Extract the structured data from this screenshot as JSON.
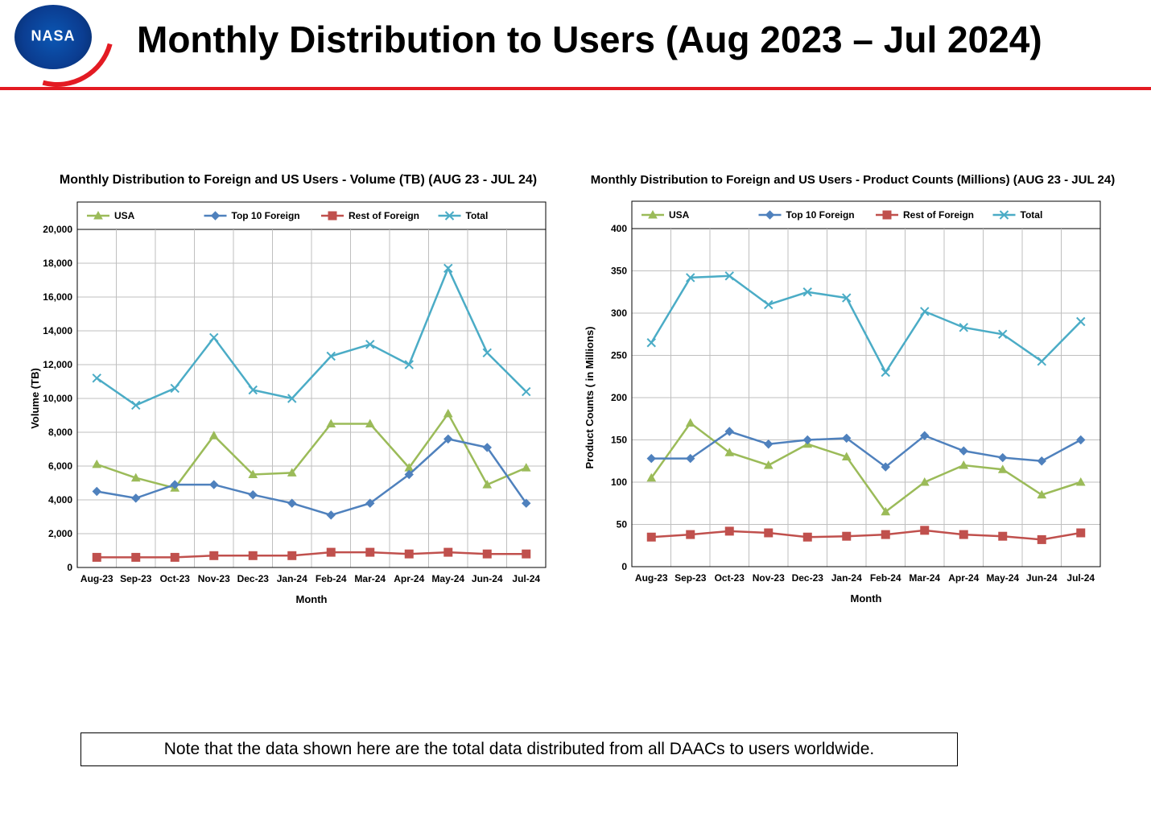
{
  "header": {
    "logo_text": "NASA",
    "title": "Monthly Distribution to Users (Aug 2023 – Jul 2024)"
  },
  "footer_note": "Note that the data shown here are the total data distributed from all DAACs to users worldwide.",
  "charts": {
    "shared": {
      "months": [
        "Aug-23",
        "Sep-23",
        "Oct-23",
        "Nov-23",
        "Dec-23",
        "Jan-24",
        "Feb-24",
        "Mar-24",
        "Apr-24",
        "May-24",
        "Jun-24",
        "Jul-24"
      ],
      "x_axis_label": "Month",
      "series_names": [
        "USA",
        "Top 10 Foreign",
        "Rest of Foreign",
        "Total"
      ],
      "colors": {
        "USA": "#9bbb59",
        "Top10Foreign": "#4f81bd",
        "RestOfForeign": "#c0504d",
        "Total": "#4bacc6"
      },
      "marker_size": 4,
      "line_width": 2.5,
      "font_family": "Arial",
      "tick_fontsize": 12,
      "axis_label_fontsize": 13,
      "legend_fontsize": 12,
      "grid_color": "#bfbfbf",
      "border_color": "#000000",
      "background_color": "#ffffff"
    },
    "volume": {
      "title": "Monthly Distribution to Foreign and US Users - Volume  (TB) (AUG 23 - JUL 24)",
      "y_axis_label": "Volume (TB)",
      "ylim": [
        0,
        20000
      ],
      "ytick_step": 2000,
      "y_format": "thousands_comma",
      "series": {
        "USA": [
          6100,
          5300,
          4700,
          7800,
          5500,
          5600,
          8500,
          8500,
          5900,
          9100,
          4900,
          5900
        ],
        "Top10Foreign": [
          4500,
          4100,
          4900,
          4900,
          4300,
          3800,
          3100,
          3800,
          5500,
          7600,
          7100,
          3800
        ],
        "RestOfForeign": [
          600,
          600,
          600,
          700,
          700,
          700,
          900,
          900,
          800,
          900,
          800,
          800
        ],
        "Total": [
          11200,
          9600,
          10600,
          13600,
          10500,
          10000,
          12500,
          13200,
          12000,
          17700,
          12700,
          10400
        ]
      }
    },
    "product": {
      "title": "Monthly Distribution to Foreign and US Users - Product Counts (Millions) (AUG 23 - JUL 24)",
      "y_axis_label": "Product Counts ( in Millions)",
      "ylim": [
        0,
        400
      ],
      "ytick_step": 50,
      "y_format": "plain",
      "series": {
        "USA": [
          105,
          170,
          135,
          120,
          145,
          130,
          65,
          100,
          120,
          115,
          85,
          100
        ],
        "Top10Foreign": [
          128,
          128,
          160,
          145,
          150,
          152,
          118,
          155,
          137,
          129,
          125,
          150
        ],
        "RestOfForeign": [
          35,
          38,
          42,
          40,
          35,
          36,
          38,
          43,
          38,
          36,
          32,
          40
        ],
        "Total": [
          265,
          342,
          344,
          310,
          325,
          318,
          230,
          302,
          283,
          275,
          243,
          290
        ]
      }
    }
  }
}
